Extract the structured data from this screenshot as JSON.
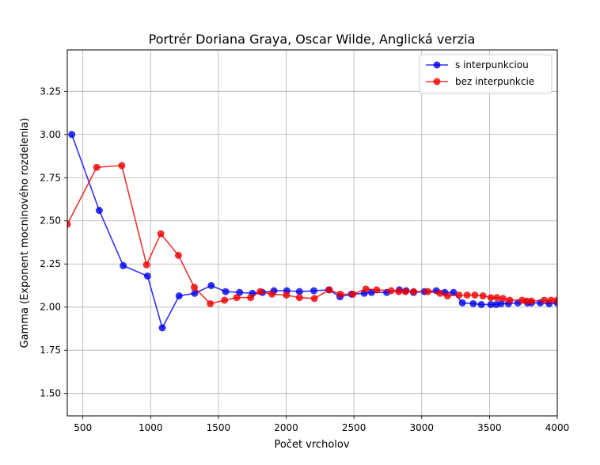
{
  "chart_data": {
    "type": "line",
    "title": "Portrér Doriana Graya, Oscar Wilde, Anglická verzia",
    "xlabel": "Počet vrcholov",
    "ylabel": "Gamma (Exponent mocninového rozdelenia)",
    "xlim": [
      385,
      4000
    ],
    "ylim": [
      1.37,
      3.49
    ],
    "x_ticks": [
      500,
      1000,
      1500,
      2000,
      2500,
      3000,
      3500,
      4000
    ],
    "x_tick_labels": [
      "500",
      "1000",
      "1500",
      "2000",
      "2500",
      "3000",
      "3500",
      "4000"
    ],
    "y_ticks": [
      1.5,
      1.75,
      2.0,
      2.25,
      2.5,
      2.75,
      3.0,
      3.25
    ],
    "y_tick_labels": [
      "1.50",
      "1.75",
      "2.00",
      "2.25",
      "2.50",
      "2.75",
      "3.00",
      "3.25"
    ],
    "grid": true,
    "legend_position": "top-right",
    "series": [
      {
        "name": "s interpunkciou",
        "color": "#0000ee",
        "x": [
          418,
          621,
          798,
          977,
          1086,
          1210,
          1325,
          1447,
          1553,
          1656,
          1751,
          1825,
          1910,
          2005,
          2098,
          2204,
          2315,
          2397,
          2482,
          2576,
          2630,
          2742,
          2835,
          2885,
          2940,
          3020,
          3108,
          3170,
          3235,
          3300,
          3380,
          3440,
          3510,
          3550,
          3585,
          3640,
          3710,
          3780,
          3810,
          3875,
          3940,
          4000
        ],
        "y": [
          3.0,
          2.56,
          2.24,
          2.18,
          1.88,
          2.065,
          2.08,
          2.125,
          2.09,
          2.085,
          2.08,
          2.085,
          2.095,
          2.095,
          2.09,
          2.095,
          2.1,
          2.06,
          2.075,
          2.08,
          2.085,
          2.085,
          2.1,
          2.095,
          2.085,
          2.09,
          2.095,
          2.085,
          2.085,
          2.025,
          2.02,
          2.015,
          2.015,
          2.015,
          2.02,
          2.02,
          2.025,
          2.025,
          2.025,
          2.025,
          2.02,
          2.025
        ]
      },
      {
        "name": "bez interpunkcie",
        "color": "#ee0000",
        "x": [
          385,
          602,
          787,
          970,
          1075,
          1205,
          1322,
          1440,
          1545,
          1635,
          1738,
          1808,
          1895,
          2002,
          2098,
          2208,
          2318,
          2400,
          2492,
          2588,
          2668,
          2775,
          2830,
          2880,
          2940,
          3045,
          3135,
          3190,
          3275,
          3335,
          3392,
          3452,
          3510,
          3555,
          3600,
          3650,
          3740,
          3775,
          3810,
          3905,
          3955,
          4000
        ],
        "y": [
          2.48,
          2.81,
          2.82,
          2.245,
          2.425,
          2.3,
          2.115,
          2.02,
          2.04,
          2.055,
          2.055,
          2.09,
          2.075,
          2.07,
          2.055,
          2.05,
          2.1,
          2.075,
          2.075,
          2.105,
          2.1,
          2.095,
          2.09,
          2.09,
          2.09,
          2.09,
          2.08,
          2.065,
          2.07,
          2.07,
          2.07,
          2.065,
          2.055,
          2.055,
          2.05,
          2.04,
          2.04,
          2.035,
          2.035,
          2.04,
          2.04,
          2.04
        ]
      }
    ]
  }
}
